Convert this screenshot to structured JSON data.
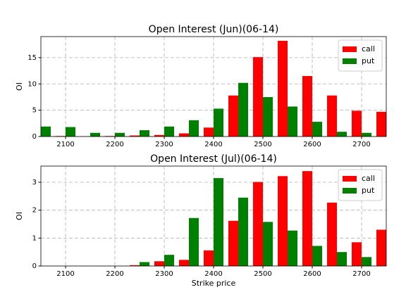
{
  "chart_data": [
    {
      "type": "bar",
      "title": "Open Interest (Jun)(06-14)",
      "y_label": "OI",
      "x": [
        2050,
        2100,
        2150,
        2200,
        2250,
        2300,
        2350,
        2400,
        2450,
        2500,
        2550,
        2600,
        2650,
        2700,
        2750
      ],
      "series": [
        {
          "name": "call",
          "color": "#ff0000",
          "values": [
            null,
            0.1,
            0.05,
            0.1,
            0.2,
            0.3,
            0.6,
            1.7,
            7.8,
            15.1,
            18.2,
            11.5,
            7.8,
            4.9,
            4.7
          ]
        },
        {
          "name": "put",
          "color": "#008000",
          "values": [
            1.9,
            1.8,
            0.7,
            0.7,
            1.2,
            1.9,
            3.1,
            5.3,
            10.2,
            7.5,
            5.7,
            2.8,
            0.9,
            0.7,
            null
          ]
        }
      ],
      "xlim": [
        2050,
        2750
      ],
      "xticks": [
        2100,
        2200,
        2300,
        2400,
        2500,
        2600,
        2700
      ],
      "ylim": [
        0,
        19
      ],
      "yticks": [
        0,
        5,
        10,
        15
      ],
      "grid": true,
      "legend": "upper right"
    },
    {
      "type": "bar",
      "title": "Open Interest (Jul)(06-14)",
      "y_label": "OI",
      "x_label": "Strike price",
      "x": [
        2050,
        2100,
        2150,
        2200,
        2250,
        2300,
        2350,
        2400,
        2450,
        2500,
        2550,
        2600,
        2650,
        2700,
        2750
      ],
      "series": [
        {
          "name": "call",
          "color": "#ff0000",
          "values": [
            null,
            0,
            0,
            0,
            0.03,
            0.17,
            0.22,
            0.56,
            1.62,
            3.01,
            3.22,
            3.4,
            2.27,
            0.85,
            1.3
          ]
        },
        {
          "name": "put",
          "color": "#008000",
          "values": [
            0,
            0,
            0,
            0,
            0.14,
            0.4,
            1.72,
            3.15,
            2.45,
            1.58,
            1.27,
            0.72,
            0.5,
            0.32,
            null
          ]
        }
      ],
      "xlim": [
        2050,
        2750
      ],
      "xticks": [
        2100,
        2200,
        2300,
        2400,
        2500,
        2600,
        2700
      ],
      "ylim": [
        0,
        3.58
      ],
      "yticks": [
        0,
        1,
        2,
        3
      ],
      "grid": true,
      "legend": "upper right"
    }
  ]
}
